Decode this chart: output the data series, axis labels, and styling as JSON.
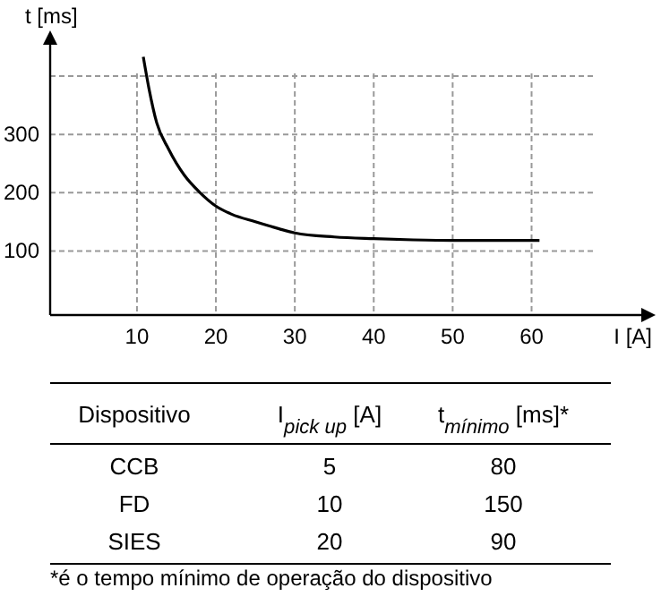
{
  "chart_data": {
    "type": "line",
    "xlabel": "I [A]",
    "ylabel": "t [ms]",
    "xlim": [
      -1,
      68
    ],
    "ylim": [
      -10,
      460
    ],
    "xticks": [
      10,
      20,
      30,
      40,
      50,
      60
    ],
    "yticks": [
      100,
      200,
      300,
      {
        "value": 400,
        "label": null
      }
    ],
    "grid": true,
    "marker": "none",
    "line_style": "solid",
    "series": [
      {
        "color": "#000000",
        "x": [
          10.8,
          11.5,
          12.5,
          14,
          16,
          18,
          20,
          22,
          25,
          28,
          30,
          35,
          40,
          45,
          50,
          55,
          61
        ],
        "values": [
          433,
          380,
          320,
          275,
          230,
          200,
          177,
          163,
          150,
          138,
          131,
          124,
          121,
          119,
          118,
          118,
          118
        ]
      }
    ],
    "annotations": [
      "Dispositivo",
      "I$_{pick up}$ [A]",
      "t$_{mínimo}$ [ms]*",
      "CCB",
      "5",
      "80",
      "FD",
      "10",
      "150",
      "SIES",
      "20",
      "90",
      "*é o tempo mínimo de operação do dispositivo"
    ]
  }
}
